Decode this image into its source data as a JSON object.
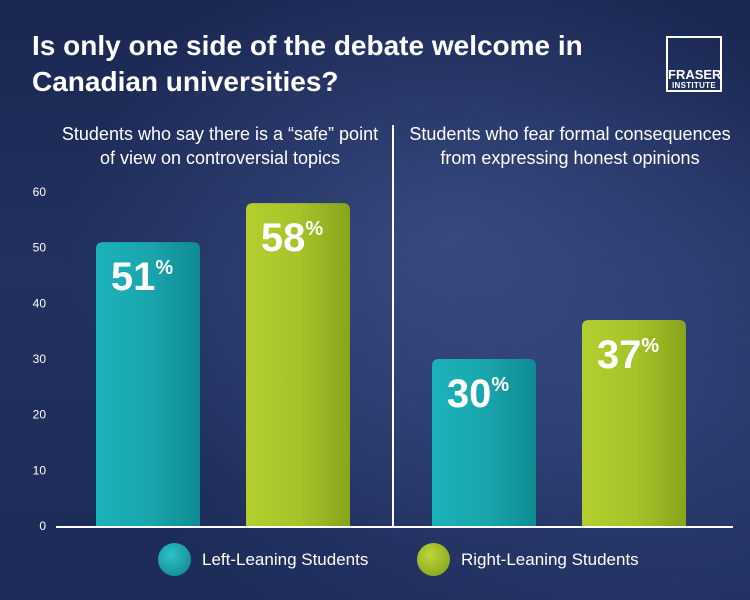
{
  "title": "Is only one side of the debate welcome in Canadian universities?",
  "logo": {
    "line1": "FRASER",
    "line2": "INSTITUTE"
  },
  "colors": {
    "left": "#1aa6ad",
    "left_dark": "#0f7f86",
    "right": "#a6c42a",
    "right_dark": "#7e9a18",
    "axis": "#ffffff"
  },
  "chart_data": {
    "type": "bar",
    "categories": [
      "Students who say there is a “safe” point of view on controversial topics",
      "Students who fear formal consequences from expressing honest opinions"
    ],
    "series": [
      {
        "name": "Left-Leaning Students",
        "values": [
          51,
          30
        ]
      },
      {
        "name": "Right-Leaning Students",
        "values": [
          58,
          37
        ]
      }
    ],
    "value_labels": [
      [
        "51%",
        "30%"
      ],
      [
        "58%",
        "37%"
      ]
    ],
    "ylim": [
      0,
      60
    ],
    "yticks": [
      0,
      10,
      20,
      30,
      40,
      50,
      60
    ],
    "legend": "bottom",
    "grid": false
  },
  "legend": {
    "left_label": "Left-Leaning Students",
    "right_label": "Right-Leaning Students"
  }
}
